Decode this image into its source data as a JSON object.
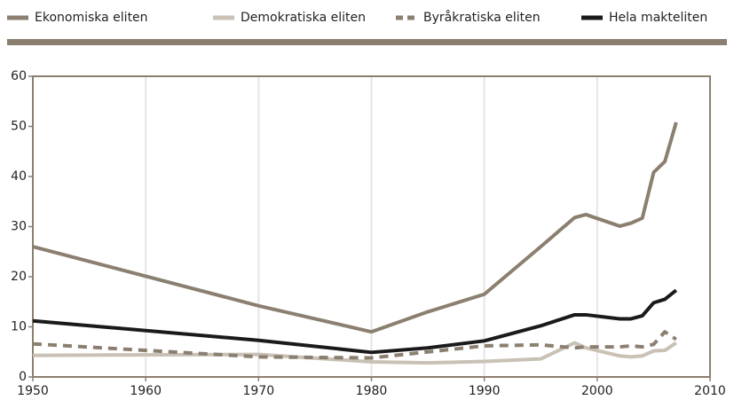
{
  "chart_data": {
    "type": "line",
    "x": [
      1950,
      1970,
      1980,
      1985,
      1990,
      1995,
      1998,
      1999,
      2002,
      2003,
      2004,
      2005,
      2006,
      2007
    ],
    "series": [
      {
        "name": "Ekonomiska eliten",
        "color": "#8b7f70",
        "dashed": false,
        "values": [
          26,
          14.2,
          9,
          13,
          16.5,
          26,
          31.8,
          32.4,
          30.1,
          30.7,
          31.7,
          40.8,
          43,
          50.8
        ]
      },
      {
        "name": "Demokratiska eliten",
        "color": "#c9c1b5",
        "dashed": false,
        "values": [
          4.3,
          4.5,
          3,
          2.8,
          3.1,
          3.6,
          6.8,
          5.8,
          4.2,
          4,
          4.2,
          5.2,
          5.3,
          6.8
        ]
      },
      {
        "name": "Byråkratiska eliten",
        "color": "#8b7f70",
        "dashed": true,
        "values": [
          6.6,
          4,
          3.8,
          5,
          6.2,
          6.4,
          5.8,
          6,
          6,
          6.2,
          6,
          6.5,
          9,
          7.5
        ]
      },
      {
        "name": "Hela makteliten",
        "color": "#1a1a1a",
        "dashed": false,
        "values": [
          11.2,
          7.3,
          4.9,
          5.8,
          7.2,
          10.2,
          12.4,
          12.4,
          11.6,
          11.6,
          12.2,
          14.8,
          15.5,
          17.3
        ]
      }
    ],
    "xlim": [
      1950,
      2010
    ],
    "xticks": [
      1950,
      1960,
      1970,
      1980,
      1990,
      2000,
      2010
    ],
    "ylim": [
      0,
      60
    ],
    "yticks": [
      0,
      10,
      20,
      30,
      40,
      50,
      60
    ],
    "grid": "x"
  }
}
